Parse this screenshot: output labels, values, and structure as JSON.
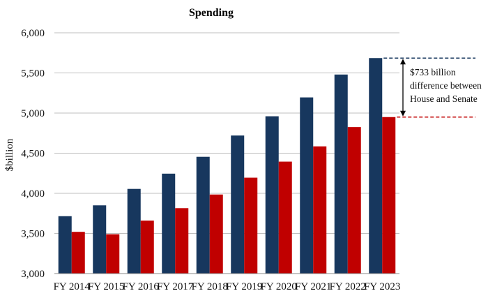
{
  "chart_data": {
    "type": "bar",
    "title": "Spending",
    "xlabel": "",
    "ylabel": "$billion",
    "ylim": [
      3000,
      6000
    ],
    "yticks": [
      3000,
      3500,
      4000,
      4500,
      5000,
      5500,
      6000
    ],
    "ytick_labels": [
      "3,000",
      "3,500",
      "4,000",
      "4,500",
      "5,000",
      "5,500",
      "6,000"
    ],
    "categories": [
      "FY 2014",
      "FY 2015",
      "FY 2016",
      "FY 2017",
      "FY 2018",
      "FY 2019",
      "FY 2020",
      "FY 2021",
      "FY 2022",
      "FY 2023"
    ],
    "series": [
      {
        "color": "#17375e",
        "values": [
          3715,
          3850,
          4055,
          4245,
          4455,
          4720,
          4960,
          5195,
          5480,
          5685
        ]
      },
      {
        "color": "#c00000",
        "values": [
          3520,
          3490,
          3660,
          3815,
          3985,
          4195,
          4395,
          4585,
          4825,
          4950
        ]
      }
    ],
    "grid": true,
    "annotation": {
      "lines": [
        "$733 billion",
        "difference between",
        "House and Senate"
      ],
      "upper_color": "#17375e",
      "lower_color": "#c00000"
    }
  }
}
